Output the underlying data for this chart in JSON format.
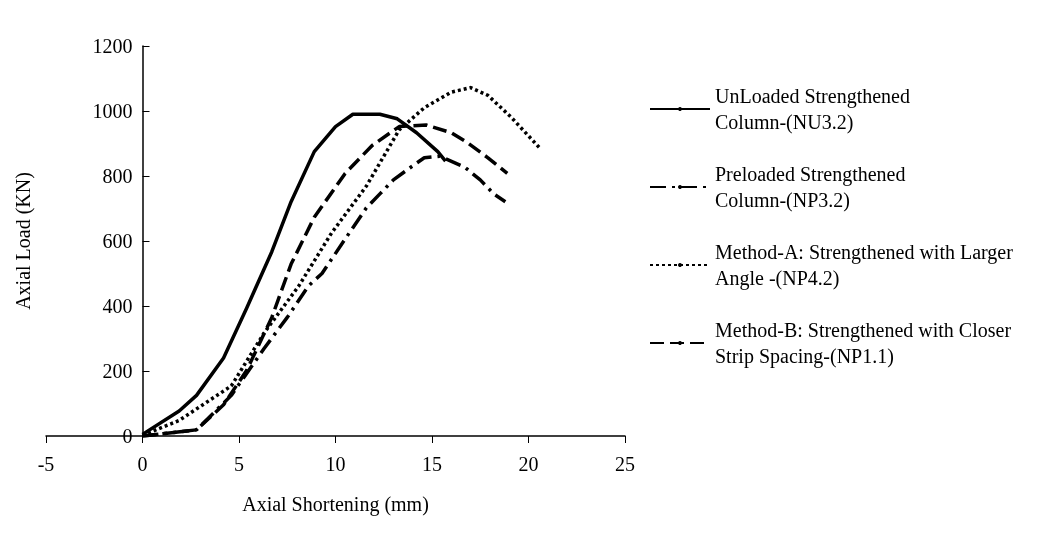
{
  "chart_data": {
    "type": "line",
    "xlabel": "Axial Shortening (mm)",
    "ylabel": "Axial Load (KN)",
    "xlim": [
      -5,
      25
    ],
    "ylim": [
      0,
      1200
    ],
    "xticks": [
      -5,
      0,
      5,
      10,
      15,
      20,
      25
    ],
    "yticks": [
      0,
      200,
      400,
      600,
      800,
      1000,
      1200
    ],
    "grid": false,
    "legend": "right",
    "marker": "none",
    "series": [
      {
        "name": "UnLoaded Strengthened Column-(NU3.2)",
        "color": "#000000",
        "line_style": "solid",
        "x": [
          0,
          1.9,
          2.8,
          4.2,
          5.4,
          6.7,
          7.7,
          8.9,
          10,
          10.9,
          12.3,
          13.2,
          14.2,
          15.3,
          15.7
        ],
        "values": [
          5,
          77,
          125,
          240,
          394,
          567,
          721,
          875,
          952,
          990,
          990,
          976,
          933,
          875,
          846
        ]
      },
      {
        "name": "Preloaded Strengthened Column-(NP3.2)",
        "color": "#000000",
        "line_style": "dashdot",
        "x": [
          0,
          2.8,
          4.6,
          6.3,
          7.5,
          8.6,
          9.3,
          10.5,
          11.6,
          12.3,
          13,
          13.9,
          14.6,
          15.4,
          16.7,
          17.5,
          18.2,
          18.8
        ],
        "values": [
          0,
          19,
          125,
          269,
          365,
          462,
          500,
          606,
          702,
          745,
          788,
          827,
          856,
          861,
          827,
          788,
          745,
          721
        ]
      },
      {
        "name": "Method-A: Strengthened with Larger Angle -(NP4.2)",
        "color": "#000000",
        "line_style": "dotted",
        "x": [
          0,
          1.9,
          4.6,
          6.3,
          8.1,
          9.8,
          11.6,
          13.3,
          14.6,
          16,
          17,
          17.9,
          19.1,
          20.6
        ],
        "values": [
          2,
          48,
          154,
          317,
          462,
          625,
          769,
          942,
          1010,
          1058,
          1072,
          1048,
          981,
          885
        ]
      },
      {
        "name": "Method-B: Strengthened with Closer Strip Spacing-(NP1.1)",
        "color": "#000000",
        "line_style": "dashed",
        "x": [
          0,
          2.8,
          4.2,
          5.4,
          6.7,
          7.7,
          8.9,
          10.5,
          11.9,
          13.3,
          14.7,
          16,
          16.8,
          17.9,
          18.9
        ],
        "values": [
          0,
          19,
          96,
          202,
          365,
          529,
          673,
          808,
          894,
          952,
          957,
          933,
          904,
          856,
          808
        ]
      }
    ]
  }
}
